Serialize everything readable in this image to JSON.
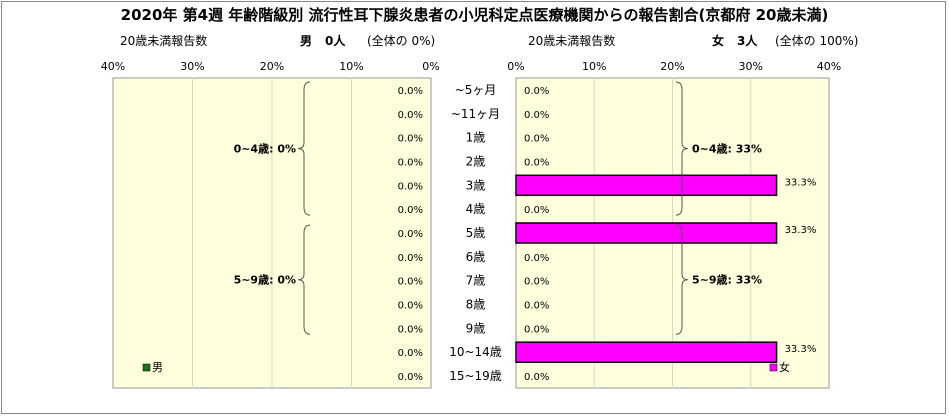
{
  "title": "2020年 第4週 年齢階級別 流行性耳下腺炎患者の小児科定点医療機関からの報告割合(京都府 20歳未満)",
  "left_panel": {
    "subtitle": "20歳未満報告数",
    "sex_label": "男",
    "count_text": "0人",
    "share_text": "(全体の 0%)",
    "legend": "男",
    "color": "#1f6f1f"
  },
  "right_panel": {
    "subtitle": "20歳未満報告数",
    "sex_label": "女",
    "count_text": "3人",
    "share_text": "(全体の 100%)",
    "legend": "女",
    "color": "#ff00ff"
  },
  "chart_data": {
    "type": "bar",
    "orientation": "horizontal-butterfly",
    "categories": [
      "~5ヶ月",
      "~11ヶ月",
      "1歳",
      "2歳",
      "3歳",
      "4歳",
      "5歳",
      "6歳",
      "7歳",
      "8歳",
      "9歳",
      "10~14歳",
      "15~19歳"
    ],
    "series": [
      {
        "name": "男",
        "values": [
          0,
          0,
          0,
          0,
          0,
          0,
          0,
          0,
          0,
          0,
          0,
          0,
          0
        ],
        "labels": [
          "0.0%",
          "0.0%",
          "0.0%",
          "0.0%",
          "0.0%",
          "0.0%",
          "0.0%",
          "0.0%",
          "0.0%",
          "0.0%",
          "0.0%",
          "0.0%",
          "0.0%"
        ]
      },
      {
        "name": "女",
        "values": [
          0,
          0,
          0,
          0,
          33.3,
          0,
          33.3,
          0,
          0,
          0,
          0,
          33.3,
          0
        ],
        "labels": [
          "0.0%",
          "0.0%",
          "0.0%",
          "0.0%",
          "33.3%",
          "0.0%",
          "33.3%",
          "0.0%",
          "0.0%",
          "0.0%",
          "0.0%",
          "33.3%",
          "0.0%"
        ]
      }
    ],
    "xlim": [
      0,
      40
    ],
    "left_ticks": [
      "40%",
      "30%",
      "20%",
      "10%",
      "0%"
    ],
    "right_ticks": [
      "0%",
      "10%",
      "20%",
      "30%",
      "40%"
    ],
    "group_annotations": {
      "left": [
        {
          "label": "0~4歳: 0%",
          "from": 0,
          "to": 5
        },
        {
          "label": "5~9歳: 0%",
          "from": 6,
          "to": 10
        }
      ],
      "right": [
        {
          "label": "0~4歳: 33%",
          "from": 0,
          "to": 5
        },
        {
          "label": "5~9歳: 33%",
          "from": 6,
          "to": 10
        }
      ]
    },
    "plot_background": "#ffffdd",
    "grid": true
  }
}
